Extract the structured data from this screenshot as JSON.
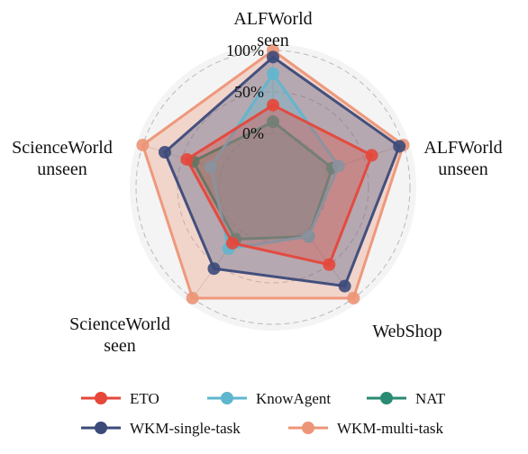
{
  "chart_data": {
    "type": "radar",
    "axes": [
      [
        "ALFWorld",
        "seen"
      ],
      [
        "ALFWorld",
        "unseen"
      ],
      [
        "WebShop"
      ],
      [
        "ScienceWorld",
        "seen"
      ],
      [
        "ScienceWorld",
        "unseen"
      ]
    ],
    "rlim": [
      0,
      100
    ],
    "ticks": [
      "0%",
      "50%",
      "100%"
    ],
    "tick_values": [
      0,
      50,
      100
    ],
    "grid": true,
    "legend_placement": "bottom",
    "series": [
      {
        "name": "ETO",
        "color": "#e5473b",
        "values": [
          34,
          60,
          50,
          18,
          44
        ]
      },
      {
        "name": "KnowAgent",
        "color": "#5fb6cf",
        "values": [
          72,
          18,
          8,
          26,
          14
        ]
      },
      {
        "name": "NAT",
        "color": "#2a8a72",
        "values": [
          14,
          10,
          8,
          12,
          36
        ]
      },
      {
        "name": "WKM-single-task",
        "color": "#3c4a7a",
        "values": [
          92,
          95,
          82,
          56,
          72
        ]
      },
      {
        "name": "WKM-multi-task",
        "color": "#ed9577",
        "values": [
          100,
          100,
          100,
          100,
          100
        ]
      }
    ]
  }
}
